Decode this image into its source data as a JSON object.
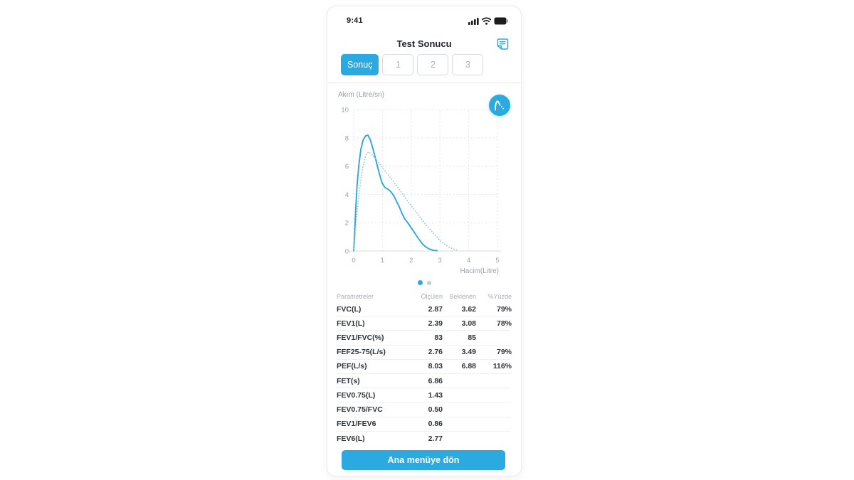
{
  "colors": {
    "accent": "#2ba9e1",
    "measured_line": "#2fa5da",
    "expected_line": "#8fc6da",
    "grid": "#e3e5e7",
    "dot_inactive": "#c7cbcf"
  },
  "status_bar": {
    "time": "9:41",
    "icons": [
      "signal-icon",
      "wifi-icon",
      "battery-icon"
    ]
  },
  "header": {
    "title": "Test Sonucu",
    "action_icon": "note-icon"
  },
  "tabs": [
    {
      "label": "Sonuç",
      "active": true
    },
    {
      "label": "1",
      "active": false
    },
    {
      "label": "2",
      "active": false
    },
    {
      "label": "3",
      "active": false
    }
  ],
  "chart_data": {
    "type": "line",
    "title": "Flow-Volume curve",
    "ylabel": "Akım (Litre/sn)",
    "xlabel": "Hacim(Litre)",
    "xlim": [
      0,
      5
    ],
    "ylim": [
      0,
      10
    ],
    "xticks": [
      0,
      1,
      2,
      3,
      4,
      5
    ],
    "yticks": [
      0,
      2,
      4,
      6,
      8,
      10
    ],
    "grid": true,
    "toggle_icon": "flow-curve-icon",
    "pagination": {
      "total": 2,
      "active_index": 0
    },
    "series": [
      {
        "name": "measured",
        "style": "solid",
        "points": [
          [
            0,
            0
          ],
          [
            0.03,
            1.1
          ],
          [
            0.07,
            2.9
          ],
          [
            0.12,
            4.7
          ],
          [
            0.18,
            6.1
          ],
          [
            0.25,
            7.2
          ],
          [
            0.33,
            7.85
          ],
          [
            0.42,
            8.15
          ],
          [
            0.5,
            8.18
          ],
          [
            0.58,
            7.85
          ],
          [
            0.68,
            7.15
          ],
          [
            0.78,
            6.35
          ],
          [
            0.88,
            5.55
          ],
          [
            0.98,
            4.85
          ],
          [
            1.08,
            4.5
          ],
          [
            1.18,
            4.38
          ],
          [
            1.28,
            4.22
          ],
          [
            1.38,
            3.95
          ],
          [
            1.48,
            3.55
          ],
          [
            1.58,
            3.15
          ],
          [
            1.68,
            2.65
          ],
          [
            1.78,
            2.25
          ],
          [
            1.88,
            2.0
          ],
          [
            1.98,
            1.7
          ],
          [
            2.08,
            1.4
          ],
          [
            2.18,
            1.1
          ],
          [
            2.28,
            0.8
          ],
          [
            2.38,
            0.52
          ],
          [
            2.5,
            0.3
          ],
          [
            2.62,
            0.15
          ],
          [
            2.75,
            0.06
          ],
          [
            2.9,
            0.02
          ]
        ]
      },
      {
        "name": "expected",
        "style": "dotted",
        "points": [
          [
            0,
            0
          ],
          [
            0.06,
            1.4
          ],
          [
            0.13,
            3.0
          ],
          [
            0.22,
            4.6
          ],
          [
            0.32,
            5.9
          ],
          [
            0.42,
            6.8
          ],
          [
            0.52,
            7.0
          ],
          [
            0.62,
            6.85
          ],
          [
            0.8,
            6.4
          ],
          [
            1.0,
            5.9
          ],
          [
            1.25,
            5.25
          ],
          [
            1.5,
            4.6
          ],
          [
            1.75,
            3.9
          ],
          [
            2.0,
            3.2
          ],
          [
            2.25,
            2.55
          ],
          [
            2.5,
            1.9
          ],
          [
            2.75,
            1.3
          ],
          [
            3.0,
            0.75
          ],
          [
            3.25,
            0.35
          ],
          [
            3.45,
            0.15
          ],
          [
            3.65,
            0.03
          ]
        ]
      }
    ]
  },
  "table": {
    "headers": [
      "Parametreler",
      "Ölçülen",
      "Beklenen",
      "%Yüzde"
    ],
    "rows": [
      {
        "param": "FVC(L)",
        "measured": "2.87",
        "predicted": "3.62",
        "percent": "79%"
      },
      {
        "param": "FEV1(L)",
        "measured": "2.39",
        "predicted": "3.08",
        "percent": "78%"
      },
      {
        "param": "FEV1/FVC(%)",
        "measured": "83",
        "predicted": "85",
        "percent": ""
      },
      {
        "param": "FEF25-75(L/s)",
        "measured": "2.76",
        "predicted": "3.49",
        "percent": "79%"
      },
      {
        "param": "PEF(L/s)",
        "measured": "8.03",
        "predicted": "6.88",
        "percent": "116%"
      },
      {
        "param": "FET(s)",
        "measured": "6.86",
        "predicted": "",
        "percent": ""
      },
      {
        "param": "FEV0.75(L)",
        "measured": "1.43",
        "predicted": "",
        "percent": ""
      },
      {
        "param": "FEV0.75/FVC",
        "measured": "0.50",
        "predicted": "",
        "percent": ""
      },
      {
        "param": "FEV1/FEV6",
        "measured": "0.86",
        "predicted": "",
        "percent": ""
      },
      {
        "param": "FEV6(L)",
        "measured": "2.77",
        "predicted": "",
        "percent": ""
      }
    ]
  },
  "footer": {
    "button_label": "Ana menüye dön"
  }
}
